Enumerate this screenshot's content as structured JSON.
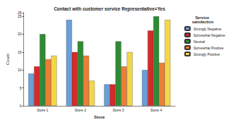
{
  "chart_data": {
    "type": "bar",
    "title": "Contact with customer service Representative=Yes",
    "x_label": "Store",
    "y_label": "Count",
    "legend_title": "Service satisfaction",
    "categories": [
      "Store 1",
      "Store 2",
      "Store 3",
      "Store 4"
    ],
    "series": [
      {
        "name": "Strongly Negative",
        "color": "#6a9fd8",
        "values": [
          9,
          24,
          6,
          10
        ]
      },
      {
        "name": "Somewhat Negative",
        "color": "#d42a2a",
        "values": [
          11,
          15,
          6,
          21
        ]
      },
      {
        "name": "Neutral",
        "color": "#2e8b34",
        "values": [
          20,
          18,
          18,
          25
        ]
      },
      {
        "name": "Somewhat Positive",
        "color": "#ee7d35",
        "values": [
          13,
          14,
          11,
          12
        ]
      },
      {
        "name": "Strongly Positive",
        "color": "#f2d74a",
        "values": [
          14,
          7,
          15,
          24
        ]
      }
    ],
    "ylim": [
      0,
      26
    ],
    "yticks": [
      0,
      5,
      10,
      15,
      20,
      25
    ],
    "grid": false,
    "legend": "right"
  }
}
